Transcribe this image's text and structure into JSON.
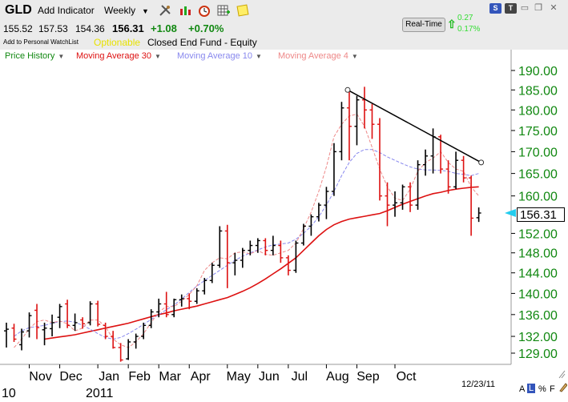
{
  "header": {
    "symbol": "GLD",
    "add_indicator": "Add Indicator",
    "period": "Weekly",
    "watchlist": "Add to Personal WatchList",
    "optionable": "Optionable",
    "fund_type": "Closed End Fund - Equity",
    "open": "155.52",
    "high": "157.53",
    "low": "154.36",
    "last": "156.31",
    "change": "+1.08",
    "change_pct": "+0.70%",
    "realtime_label": "Real-Time",
    "rt_change": "0.27",
    "rt_change_pct": "0.17%",
    "icons": [
      "tools-icon",
      "chart-type-icon",
      "alarm-icon",
      "grid-icon",
      "note-icon"
    ]
  },
  "window_buttons": {
    "s_label": "S",
    "t_label": "T"
  },
  "legend": [
    {
      "label": "Price History",
      "color": "#118811"
    },
    {
      "label": "Moving Average 30",
      "color": "#dd1111"
    },
    {
      "label": "Moving Average 10",
      "color": "#8888ee"
    },
    {
      "label": "Moving Average 4",
      "color": "#ee8888"
    }
  ],
  "last_price_label": "156.31",
  "date_label": "12/23/11",
  "corner_labels": {
    "a": "A",
    "l": "L",
    "pct": "%",
    "f": "F"
  },
  "chart_data": {
    "type": "ohlc",
    "frequency": "weekly",
    "y_axis": {
      "ticks": [
        "190.00",
        "185.00",
        "180.00",
        "175.00",
        "170.00",
        "165.00",
        "160.00",
        "156.00",
        "152.00",
        "148.00",
        "144.00",
        "140.00",
        "136.00",
        "132.00",
        "129.00"
      ],
      "scale": "log",
      "ylim": [
        127,
        192
      ]
    },
    "x_axis": {
      "month_labels": [
        "Nov",
        "Dec",
        "Jan",
        "Feb",
        "Mar",
        "Apr",
        "May",
        "Jun",
        "Jul",
        "Aug",
        "Sep",
        "Oct"
      ],
      "year_labels": [
        "10",
        "2011"
      ]
    },
    "colors": {
      "up_bar": "#000000",
      "down_bar": "#dd1111",
      "ma30": "#dd1111",
      "ma10": "#8888ee",
      "ma4": "#ee8888",
      "trendline": "#000000",
      "current_marker": "#22ccee"
    },
    "bars": [
      {
        "date": "2010-10-15",
        "o": 133.0,
        "h": 134.5,
        "l": 130.0,
        "c": 133.3
      },
      {
        "date": "2010-10-22",
        "o": 133.5,
        "h": 134.3,
        "l": 131.0,
        "c": 131.5
      },
      {
        "date": "2010-10-29",
        "o": 130.5,
        "h": 133.4,
        "l": 129.5,
        "c": 132.8
      },
      {
        "date": "2010-11-05",
        "o": 133.0,
        "h": 136.4,
        "l": 131.8,
        "c": 135.8
      },
      {
        "date": "2010-11-12",
        "o": 136.8,
        "h": 138.0,
        "l": 131.5,
        "c": 133.6
      },
      {
        "date": "2010-11-19",
        "o": 133.2,
        "h": 134.5,
        "l": 130.4,
        "c": 133.5
      },
      {
        "date": "2010-11-26",
        "o": 133.4,
        "h": 136.0,
        "l": 132.0,
        "c": 134.5
      },
      {
        "date": "2010-12-03",
        "o": 135.5,
        "h": 138.0,
        "l": 133.5,
        "c": 137.5
      },
      {
        "date": "2010-12-10",
        "o": 138.0,
        "h": 138.8,
        "l": 133.5,
        "c": 134.0
      },
      {
        "date": "2010-12-17",
        "o": 134.0,
        "h": 136.2,
        "l": 133.0,
        "c": 134.5
      },
      {
        "date": "2010-12-24",
        "o": 135.0,
        "h": 135.5,
        "l": 133.4,
        "c": 134.3
      },
      {
        "date": "2010-12-31",
        "o": 134.5,
        "h": 138.5,
        "l": 134.0,
        "c": 138.0
      },
      {
        "date": "2011-01-07",
        "o": 138.0,
        "h": 138.6,
        "l": 133.8,
        "c": 134.2
      },
      {
        "date": "2011-01-14",
        "o": 134.0,
        "h": 134.5,
        "l": 131.5,
        "c": 132.0
      },
      {
        "date": "2011-01-21",
        "o": 132.0,
        "h": 133.0,
        "l": 129.8,
        "c": 130.0
      },
      {
        "date": "2011-01-28",
        "o": 130.0,
        "h": 130.8,
        "l": 127.5,
        "c": 127.8
      },
      {
        "date": "2011-02-04",
        "o": 128.0,
        "h": 131.5,
        "l": 127.8,
        "c": 131.0
      },
      {
        "date": "2011-02-11",
        "o": 131.0,
        "h": 132.5,
        "l": 129.8,
        "c": 132.0
      },
      {
        "date": "2011-02-18",
        "o": 132.0,
        "h": 134.5,
        "l": 131.5,
        "c": 134.0
      },
      {
        "date": "2011-02-25",
        "o": 134.0,
        "h": 137.0,
        "l": 133.5,
        "c": 136.5
      },
      {
        "date": "2011-03-04",
        "o": 136.5,
        "h": 139.0,
        "l": 135.5,
        "c": 138.0
      },
      {
        "date": "2011-03-11",
        "o": 138.0,
        "h": 140.3,
        "l": 135.5,
        "c": 136.0
      },
      {
        "date": "2011-03-18",
        "o": 136.0,
        "h": 139.0,
        "l": 135.5,
        "c": 138.8
      },
      {
        "date": "2011-03-25",
        "o": 138.8,
        "h": 139.8,
        "l": 137.5,
        "c": 139.0
      },
      {
        "date": "2011-04-01",
        "o": 139.0,
        "h": 140.0,
        "l": 137.0,
        "c": 138.5
      },
      {
        "date": "2011-04-08",
        "o": 138.5,
        "h": 141.0,
        "l": 138.0,
        "c": 140.5
      },
      {
        "date": "2011-04-15",
        "o": 140.5,
        "h": 143.0,
        "l": 139.8,
        "c": 142.5
      },
      {
        "date": "2011-04-22",
        "o": 142.5,
        "h": 146.0,
        "l": 142.0,
        "c": 145.5
      },
      {
        "date": "2011-04-29",
        "o": 145.5,
        "h": 153.5,
        "l": 145.0,
        "c": 152.5
      },
      {
        "date": "2011-05-06",
        "o": 152.5,
        "h": 153.8,
        "l": 141.0,
        "c": 146.0
      },
      {
        "date": "2011-05-13",
        "o": 146.0,
        "h": 148.0,
        "l": 143.5,
        "c": 146.5
      },
      {
        "date": "2011-05-20",
        "o": 146.5,
        "h": 149.0,
        "l": 145.0,
        "c": 148.5
      },
      {
        "date": "2011-05-27",
        "o": 148.5,
        "h": 150.5,
        "l": 147.5,
        "c": 149.5
      },
      {
        "date": "2011-06-03",
        "o": 149.5,
        "h": 151.0,
        "l": 148.0,
        "c": 150.5
      },
      {
        "date": "2011-06-10",
        "o": 150.5,
        "h": 151.0,
        "l": 147.5,
        "c": 148.5
      },
      {
        "date": "2011-06-17",
        "o": 148.5,
        "h": 151.5,
        "l": 147.5,
        "c": 149.5
      },
      {
        "date": "2011-06-24",
        "o": 149.5,
        "h": 150.5,
        "l": 146.0,
        "c": 147.0
      },
      {
        "date": "2011-07-01",
        "o": 147.0,
        "h": 147.5,
        "l": 143.5,
        "c": 144.5
      },
      {
        "date": "2011-07-08",
        "o": 144.5,
        "h": 150.5,
        "l": 144.0,
        "c": 150.0
      },
      {
        "date": "2011-07-15",
        "o": 150.0,
        "h": 154.0,
        "l": 149.5,
        "c": 153.5
      },
      {
        "date": "2011-07-22",
        "o": 153.5,
        "h": 156.0,
        "l": 151.5,
        "c": 155.5
      },
      {
        "date": "2011-07-29",
        "o": 155.5,
        "h": 158.5,
        "l": 154.5,
        "c": 158.0
      },
      {
        "date": "2011-08-05",
        "o": 158.0,
        "h": 162.0,
        "l": 155.0,
        "c": 161.0
      },
      {
        "date": "2011-08-12",
        "o": 161.0,
        "h": 172.0,
        "l": 160.0,
        "c": 170.0
      },
      {
        "date": "2011-08-19",
        "o": 170.0,
        "h": 182.0,
        "l": 168.0,
        "c": 180.5
      },
      {
        "date": "2011-08-26",
        "o": 180.5,
        "h": 185.0,
        "l": 168.0,
        "c": 176.0
      },
      {
        "date": "2011-09-02",
        "o": 176.0,
        "h": 183.5,
        "l": 171.5,
        "c": 182.5
      },
      {
        "date": "2011-09-09",
        "o": 182.5,
        "h": 185.8,
        "l": 175.5,
        "c": 180.0
      },
      {
        "date": "2011-09-16",
        "o": 180.0,
        "h": 181.5,
        "l": 173.0,
        "c": 176.5
      },
      {
        "date": "2011-09-23",
        "o": 176.5,
        "h": 178.0,
        "l": 159.0,
        "c": 160.0
      },
      {
        "date": "2011-09-30",
        "o": 160.0,
        "h": 163.0,
        "l": 153.5,
        "c": 158.0
      },
      {
        "date": "2011-10-07",
        "o": 158.0,
        "h": 161.0,
        "l": 155.5,
        "c": 158.5
      },
      {
        "date": "2011-10-14",
        "o": 158.5,
        "h": 162.5,
        "l": 157.0,
        "c": 162.0
      },
      {
        "date": "2011-10-21",
        "o": 162.0,
        "h": 163.0,
        "l": 156.5,
        "c": 158.0
      },
      {
        "date": "2011-10-28",
        "o": 158.0,
        "h": 168.0,
        "l": 157.0,
        "c": 167.0
      },
      {
        "date": "2011-11-04",
        "o": 167.0,
        "h": 170.5,
        "l": 164.5,
        "c": 169.0
      },
      {
        "date": "2011-11-11",
        "o": 169.0,
        "h": 175.5,
        "l": 165.0,
        "c": 173.5
      },
      {
        "date": "2011-11-18",
        "o": 173.5,
        "h": 174.0,
        "l": 165.0,
        "c": 166.0
      },
      {
        "date": "2011-11-25",
        "o": 166.0,
        "h": 168.0,
        "l": 160.5,
        "c": 162.0
      },
      {
        "date": "2011-12-02",
        "o": 162.0,
        "h": 170.0,
        "l": 161.5,
        "c": 168.0
      },
      {
        "date": "2011-12-09",
        "o": 168.0,
        "h": 169.0,
        "l": 163.0,
        "c": 164.0
      },
      {
        "date": "2011-12-16",
        "o": 164.0,
        "h": 164.5,
        "l": 151.5,
        "c": 155.2
      },
      {
        "date": "2011-12-23",
        "o": 155.3,
        "h": 157.5,
        "l": 154.4,
        "c": 156.3
      }
    ],
    "trendline": [
      {
        "date": "2011-08-26",
        "value": 185.0
      },
      {
        "date": "2011-12-23",
        "value": 167.5
      }
    ],
    "ma30": [
      131.5,
      131.7,
      131.9,
      132.1,
      132.3,
      132.6,
      132.9,
      133.2,
      133.5,
      133.8,
      134.1,
      134.4,
      134.8,
      135.2,
      135.6,
      136.0,
      136.3,
      136.7,
      137.0,
      137.3,
      137.6,
      138.0,
      138.4,
      138.8,
      139.2,
      139.8,
      140.4,
      141.1,
      141.9,
      142.8,
      143.8,
      144.8,
      145.9,
      147.0,
      148.5,
      150.0,
      151.5,
      152.8,
      153.8,
      154.5,
      155.0,
      155.3,
      155.6,
      155.9,
      156.2,
      156.8,
      157.5,
      158.2,
      158.8,
      159.4,
      160.0,
      160.5,
      160.8,
      161.2,
      161.5,
      161.7,
      161.9,
      162.0
    ],
    "ma10": [
      132.0,
      133.0,
      133.6,
      133.8,
      134.0,
      134.4,
      134.7,
      134.8,
      134.6,
      134.0,
      133.3,
      132.5,
      131.8,
      131.5,
      131.8,
      132.5,
      133.3,
      134.2,
      135.1,
      136.0,
      136.9,
      137.8,
      138.9,
      140.2,
      141.4,
      142.5,
      143.5,
      144.5,
      145.5,
      146.5,
      147.3,
      148.0,
      148.6,
      149.2,
      149.6,
      149.8,
      150.0,
      150.8,
      152.0,
      153.5,
      155.5,
      158.0,
      161.0,
      164.5,
      167.5,
      169.6,
      170.5,
      170.5,
      169.8,
      168.8,
      168.0,
      167.2,
      166.5,
      166.0,
      165.8,
      165.8,
      165.7,
      165.5,
      165.0,
      164.8,
      164.5,
      165.0
    ],
    "ma4": [
      130.0,
      131.5,
      133.4,
      134.7,
      135.0,
      134.5,
      134.8,
      134.3,
      133.0,
      133.5,
      135.0,
      135.0,
      133.8,
      131.5,
      130.5,
      130.0,
      131.0,
      132.5,
      134.5,
      136.5,
      137.5,
      137.5,
      138.5,
      139.8,
      141.5,
      144.5,
      146.0,
      147.0,
      146.8,
      148.0,
      148.2,
      147.8,
      148.5,
      147.7,
      147.5,
      148.0,
      148.5,
      150.0,
      153.0,
      156.5,
      161.0,
      166.5,
      173.5,
      176.5,
      178.5,
      179.0,
      176.0,
      171.0,
      166.0,
      162.0,
      159.5,
      159.0,
      161.5,
      165.5,
      167.5,
      168.5,
      170.0,
      167.5,
      166.0,
      165.5,
      162.0,
      160.0
    ]
  }
}
